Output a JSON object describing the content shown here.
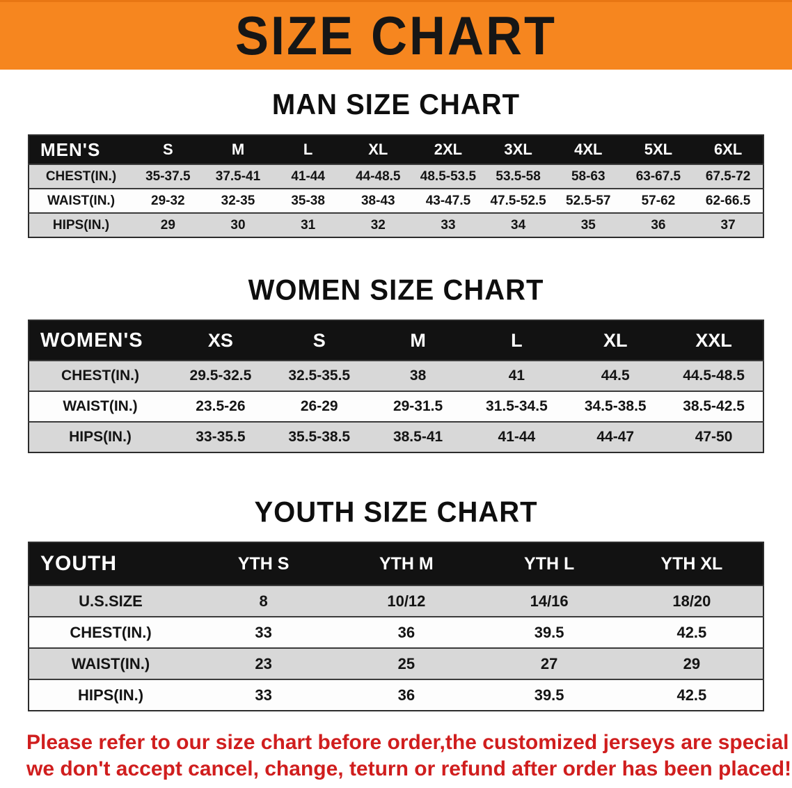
{
  "theme": {
    "banner_bg": "#f6861f",
    "header_bg": "#121212",
    "header_fg": "#ffffff",
    "stripe": "#d8d8d8",
    "notice": "#d01e1e"
  },
  "banner": {
    "title": "SIZE CHART"
  },
  "sections": [
    {
      "id": "men",
      "heading": "MAN SIZE CHART",
      "table": {
        "corner": "MEN'S",
        "columns": [
          "S",
          "M",
          "L",
          "XL",
          "2XL",
          "3XL",
          "4XL",
          "5XL",
          "6XL"
        ],
        "rows": [
          {
            "label": "CHEST(IN.)",
            "values": [
              "35-37.5",
              "37.5-41",
              "41-44",
              "44-48.5",
              "48.5-53.5",
              "53.5-58",
              "58-63",
              "63-67.5",
              "67.5-72"
            ]
          },
          {
            "label": "WAIST(IN.)",
            "values": [
              "29-32",
              "32-35",
              "35-38",
              "38-43",
              "43-47.5",
              "47.5-52.5",
              "52.5-57",
              "57-62",
              "62-66.5"
            ]
          },
          {
            "label": "HIPS(IN.)",
            "values": [
              "29",
              "30",
              "31",
              "32",
              "33",
              "34",
              "35",
              "36",
              "37"
            ]
          }
        ]
      }
    },
    {
      "id": "women",
      "heading": "WOMEN SIZE CHART",
      "table": {
        "corner": "WOMEN'S",
        "columns": [
          "XS",
          "S",
          "M",
          "L",
          "XL",
          "XXL"
        ],
        "rows": [
          {
            "label": "CHEST(IN.)",
            "values": [
              "29.5-32.5",
              "32.5-35.5",
              "38",
              "41",
              "44.5",
              "44.5-48.5"
            ]
          },
          {
            "label": "WAIST(IN.)",
            "values": [
              "23.5-26",
              "26-29",
              "29-31.5",
              "31.5-34.5",
              "34.5-38.5",
              "38.5-42.5"
            ]
          },
          {
            "label": "HIPS(IN.)",
            "values": [
              "33-35.5",
              "35.5-38.5",
              "38.5-41",
              "41-44",
              "44-47",
              "47-50"
            ]
          }
        ]
      }
    },
    {
      "id": "youth",
      "heading": "YOUTH SIZE CHART",
      "table": {
        "corner": "YOUTH",
        "columns": [
          "YTH S",
          "YTH M",
          "YTH L",
          "YTH XL"
        ],
        "rows": [
          {
            "label": "U.S.SIZE",
            "values": [
              "8",
              "10/12",
              "14/16",
              "18/20"
            ]
          },
          {
            "label": "CHEST(IN.)",
            "values": [
              "33",
              "36",
              "39.5",
              "42.5"
            ]
          },
          {
            "label": "WAIST(IN.)",
            "values": [
              "23",
              "25",
              "27",
              "29"
            ]
          },
          {
            "label": "HIPS(IN.)",
            "values": [
              "33",
              "36",
              "39.5",
              "42.5"
            ]
          }
        ]
      }
    }
  ],
  "notice": {
    "lines": [
      "Please refer to our size chart before order,the customized jerseys are special products,",
      "we don't accept cancel, change, teturn or refund after order has been placed!"
    ]
  }
}
